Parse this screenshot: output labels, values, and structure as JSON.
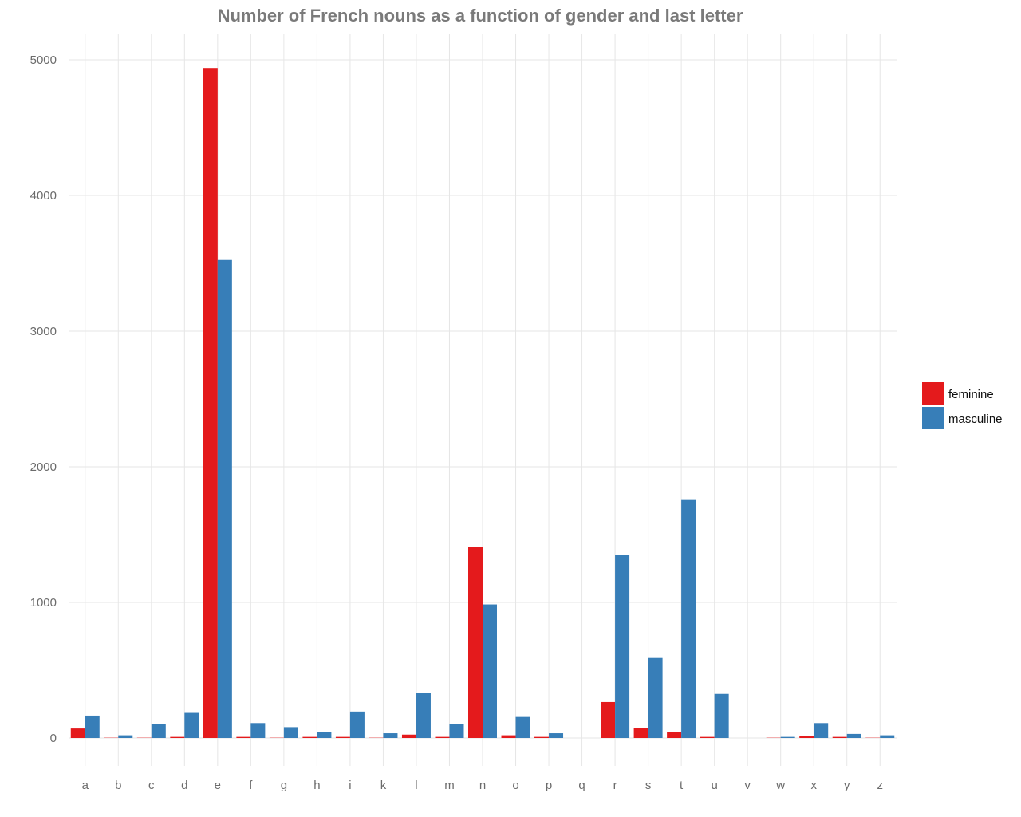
{
  "chart_data": {
    "type": "bar",
    "title": "Number of French nouns as a function of gender and last letter",
    "xlabel": "",
    "ylabel": "",
    "categories": [
      "a",
      "b",
      "c",
      "d",
      "e",
      "f",
      "g",
      "h",
      "i",
      "k",
      "l",
      "m",
      "n",
      "o",
      "p",
      "q",
      "r",
      "s",
      "t",
      "u",
      "v",
      "w",
      "x",
      "y",
      "z"
    ],
    "series": [
      {
        "name": "feminine",
        "color": "#e41a1c",
        "values": [
          70,
          2,
          2,
          8,
          4940,
          8,
          2,
          8,
          8,
          2,
          25,
          8,
          1410,
          20,
          8,
          0,
          265,
          75,
          45,
          8,
          0,
          2,
          15,
          8,
          2
        ]
      },
      {
        "name": "masculine",
        "color": "#377eb8",
        "values": [
          165,
          20,
          105,
          185,
          3525,
          110,
          80,
          45,
          195,
          35,
          335,
          100,
          985,
          155,
          35,
          0,
          1350,
          590,
          1755,
          325,
          0,
          8,
          110,
          30,
          20
        ]
      }
    ],
    "yticks": [
      0,
      1000,
      2000,
      3000,
      4000,
      5000
    ],
    "ylim": [
      -200,
      5200
    ],
    "grid": true,
    "legend_position": "right"
  }
}
